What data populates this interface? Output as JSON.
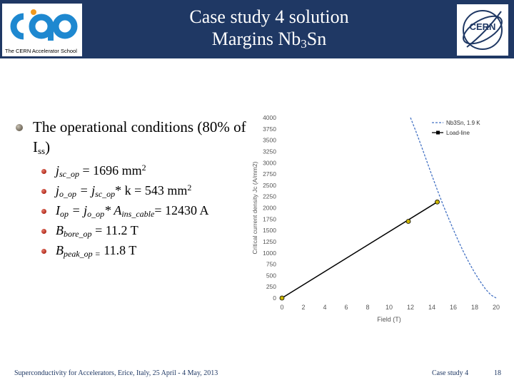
{
  "header": {
    "title_line1": "Case study 4 solution",
    "title_line2_prefix": "Margins Nb",
    "title_line2_sub": "3",
    "title_line2_suffix": "Sn",
    "logo_left_caption": "The CERN Accelerator School",
    "logo_right_text": "CERN"
  },
  "content": {
    "main_bullet": {
      "text": "The operational conditions (80% of I",
      "sub": "ss",
      "close": ")"
    },
    "items": [
      {
        "pre": "j",
        "sub": "sc_op",
        "text": " = 1696 mm",
        "sup": "2"
      },
      {
        "pre": "j",
        "sub": "o_op",
        "text": " = j",
        "sub2": "sc_op",
        "text2": "* k = 543 mm",
        "sup": "2"
      },
      {
        "pre": "I",
        "sub": "op",
        "text": " = j",
        "sub2": "o_op",
        "text2": "* A",
        "sub3": "ins_cable",
        "text3": "= 12430 A"
      },
      {
        "pre": "B",
        "sub": "bore_op",
        "text": " = 11.2 T"
      },
      {
        "pre": "B",
        "sub": "peak_op =",
        "text": " 11.8 T"
      }
    ]
  },
  "chart_data": {
    "type": "line",
    "xlabel": "Field (T)",
    "ylabel": "Critical current density Jc (A/mm2)",
    "xlim": [
      0,
      20
    ],
    "ylim": [
      0,
      4000
    ],
    "x_ticks": [
      "0",
      "2",
      "4",
      "6",
      "8",
      "10",
      "12",
      "14",
      "16",
      "18",
      "20"
    ],
    "y_ticks": [
      "0",
      "250",
      "500",
      "750",
      "1000",
      "1250",
      "1500",
      "1750",
      "2000",
      "2250",
      "2500",
      "2750",
      "3000",
      "3250",
      "3500",
      "3750",
      "4000"
    ],
    "legend_position": "top-right",
    "series": [
      {
        "name": "Nb3Sn, 1.9 K",
        "style": "dashed",
        "color": "#4472c4",
        "points": [
          [
            12,
            4000
          ],
          [
            12.5,
            3700
          ],
          [
            13,
            3380
          ],
          [
            13.5,
            3050
          ],
          [
            14,
            2720
          ],
          [
            14.5,
            2400
          ],
          [
            15,
            2090
          ],
          [
            15.5,
            1800
          ],
          [
            16,
            1520
          ],
          [
            16.5,
            1250
          ],
          [
            17,
            1000
          ],
          [
            17.5,
            770
          ],
          [
            18,
            560
          ],
          [
            18.5,
            370
          ],
          [
            19,
            200
          ],
          [
            19.5,
            70
          ],
          [
            20,
            0
          ]
        ]
      },
      {
        "name": "Load-line",
        "style": "solid",
        "color": "#000000",
        "points": [
          [
            0,
            0
          ],
          [
            14.5,
            2130
          ]
        ]
      }
    ],
    "markers": [
      {
        "x": 0,
        "y": 0,
        "color": "#c9b400"
      },
      {
        "x": 11.8,
        "y": 1700,
        "color": "#c9b400"
      },
      {
        "x": 14.5,
        "y": 2130,
        "color": "#c9b400"
      }
    ]
  },
  "footer": {
    "left": "Superconductivity for Accelerators, Erice, Italy, 25 April - 4 May, 2013",
    "center": "Case study 4",
    "page": "18"
  }
}
